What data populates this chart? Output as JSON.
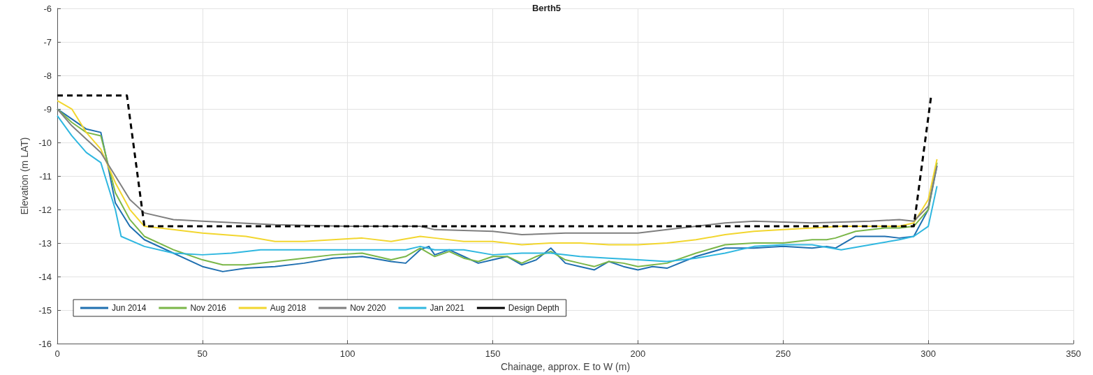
{
  "chart_data": {
    "type": "line",
    "title": "Berth5",
    "xlabel": "Chainage, approx. E to W (m)",
    "ylabel": "Elevation (m LAT)",
    "xlim": [
      0,
      350
    ],
    "xticks": [
      0,
      50,
      100,
      150,
      200,
      250,
      300,
      350
    ],
    "ylim": [
      -16,
      -6
    ],
    "yticks": [
      -16,
      -15,
      -14,
      -13,
      -12,
      -11,
      -10,
      -9,
      -8,
      -7,
      -6
    ],
    "grid": true,
    "legend": "bottom left",
    "marker": "none",
    "line_style": "solid",
    "series": [
      {
        "name": "Jun 2014",
        "color": "#1f6fb0",
        "x": [
          0,
          5,
          10,
          15,
          17,
          20,
          25,
          30,
          40,
          50,
          57,
          65,
          75,
          85,
          95,
          105,
          115,
          120,
          125,
          128,
          130,
          135,
          140,
          145,
          150,
          155,
          160,
          165,
          170,
          175,
          180,
          185,
          190,
          195,
          200,
          205,
          210,
          220,
          230,
          240,
          250,
          260,
          265,
          268,
          275,
          285,
          290,
          295,
          300,
          303
        ],
        "values": [
          -9.0,
          -9.3,
          -9.6,
          -9.7,
          -10.5,
          -11.8,
          -12.5,
          -12.9,
          -13.3,
          -13.7,
          -13.85,
          -13.75,
          -13.7,
          -13.6,
          -13.45,
          -13.4,
          -13.55,
          -13.6,
          -13.2,
          -13.1,
          -13.35,
          -13.2,
          -13.4,
          -13.6,
          -13.5,
          -13.4,
          -13.65,
          -13.5,
          -13.15,
          -13.6,
          -13.7,
          -13.8,
          -13.55,
          -13.7,
          -13.8,
          -13.7,
          -13.75,
          -13.4,
          -13.15,
          -13.15,
          -13.1,
          -13.15,
          -13.1,
          -13.15,
          -12.8,
          -12.8,
          -12.85,
          -12.8,
          -12.0,
          -10.7
        ]
      },
      {
        "name": "Nov 2016",
        "color": "#7ab648",
        "x": [
          0,
          5,
          10,
          15,
          20,
          25,
          30,
          40,
          50,
          57,
          65,
          75,
          85,
          95,
          105,
          115,
          120,
          125,
          130,
          135,
          140,
          145,
          150,
          155,
          160,
          165,
          170,
          175,
          180,
          185,
          190,
          195,
          200,
          205,
          210,
          220,
          230,
          240,
          250,
          260,
          265,
          268,
          275,
          285,
          290,
          295,
          300,
          303
        ],
        "values": [
          -9.0,
          -9.4,
          -9.7,
          -9.8,
          -11.5,
          -12.3,
          -12.8,
          -13.2,
          -13.5,
          -13.65,
          -13.65,
          -13.55,
          -13.45,
          -13.35,
          -13.3,
          -13.5,
          -13.4,
          -13.15,
          -13.4,
          -13.25,
          -13.45,
          -13.55,
          -13.4,
          -13.4,
          -13.6,
          -13.4,
          -13.25,
          -13.5,
          -13.6,
          -13.7,
          -13.55,
          -13.6,
          -13.7,
          -13.65,
          -13.6,
          -13.3,
          -13.05,
          -13.0,
          -13.0,
          -12.9,
          -12.9,
          -12.85,
          -12.65,
          -12.55,
          -12.55,
          -12.5,
          -12.0,
          -10.6
        ]
      },
      {
        "name": "Aug 2018",
        "color": "#f2d62e",
        "x": [
          0,
          5,
          10,
          15,
          20,
          25,
          30,
          40,
          50,
          65,
          75,
          85,
          95,
          105,
          115,
          125,
          130,
          140,
          150,
          160,
          170,
          180,
          190,
          200,
          210,
          220,
          230,
          240,
          250,
          260,
          270,
          280,
          290,
          295,
          300,
          303
        ],
        "values": [
          -8.75,
          -9.0,
          -9.7,
          -10.2,
          -11.2,
          -12.0,
          -12.5,
          -12.6,
          -12.7,
          -12.8,
          -12.95,
          -12.95,
          -12.9,
          -12.85,
          -12.95,
          -12.8,
          -12.85,
          -12.95,
          -12.95,
          -13.05,
          -13.0,
          -13.0,
          -13.05,
          -13.05,
          -13.0,
          -12.9,
          -12.75,
          -12.65,
          -12.6,
          -12.55,
          -12.5,
          -12.5,
          -12.5,
          -12.4,
          -11.7,
          -10.5
        ]
      },
      {
        "name": "Nov 2020",
        "color": "#7f7f7f",
        "x": [
          0,
          5,
          10,
          15,
          20,
          25,
          30,
          40,
          50,
          75,
          100,
          125,
          130,
          150,
          160,
          175,
          200,
          210,
          220,
          230,
          240,
          260,
          280,
          290,
          295,
          300,
          303
        ],
        "values": [
          -9.0,
          -9.5,
          -9.9,
          -10.3,
          -11.0,
          -11.7,
          -12.1,
          -12.3,
          -12.35,
          -12.45,
          -12.5,
          -12.5,
          -12.6,
          -12.65,
          -12.75,
          -12.7,
          -12.7,
          -12.6,
          -12.5,
          -12.4,
          -12.35,
          -12.4,
          -12.35,
          -12.3,
          -12.35,
          -11.9,
          -10.7
        ]
      },
      {
        "name": "Jan 2021",
        "color": "#2fb7e0",
        "x": [
          0,
          5,
          10,
          15,
          20,
          22,
          30,
          40,
          50,
          60,
          70,
          80,
          100,
          120,
          125,
          130,
          140,
          150,
          160,
          170,
          180,
          190,
          200,
          210,
          220,
          230,
          240,
          250,
          260,
          270,
          280,
          290,
          295,
          300,
          303
        ],
        "values": [
          -9.2,
          -9.8,
          -10.3,
          -10.6,
          -12.0,
          -12.8,
          -13.1,
          -13.3,
          -13.35,
          -13.3,
          -13.2,
          -13.2,
          -13.2,
          -13.2,
          -13.1,
          -13.2,
          -13.2,
          -13.35,
          -13.3,
          -13.3,
          -13.4,
          -13.45,
          -13.5,
          -13.55,
          -13.45,
          -13.3,
          -13.1,
          -13.05,
          -13.05,
          -13.2,
          -13.05,
          -12.9,
          -12.8,
          -12.5,
          -11.3
        ]
      },
      {
        "name": "Design Depth",
        "color": "#000000",
        "line_style": "dashed",
        "x": [
          0,
          24,
          30,
          295,
          301
        ],
        "values": [
          -8.6,
          -8.6,
          -12.5,
          -12.5,
          -8.6
        ]
      }
    ]
  }
}
